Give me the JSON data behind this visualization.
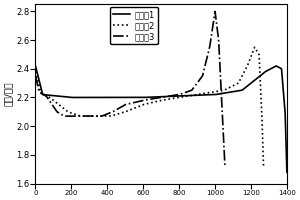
{
  "title": "",
  "ylabel": "电压/伏特",
  "xlabel": "",
  "xlim": [
    0,
    1400
  ],
  "ylim": [
    1.6,
    2.85
  ],
  "yticks": [
    1.6,
    1.8,
    2.0,
    2.2,
    2.4,
    2.6,
    2.8
  ],
  "xticks": [
    0,
    200,
    400,
    600,
    800,
    1000,
    1200,
    1400
  ],
  "legend": [
    "实施例1",
    "实施例2",
    "实施例3"
  ],
  "linestyles": [
    "-",
    ":",
    "-."
  ],
  "linecolor": "#000000",
  "linewidth": 1.2
}
